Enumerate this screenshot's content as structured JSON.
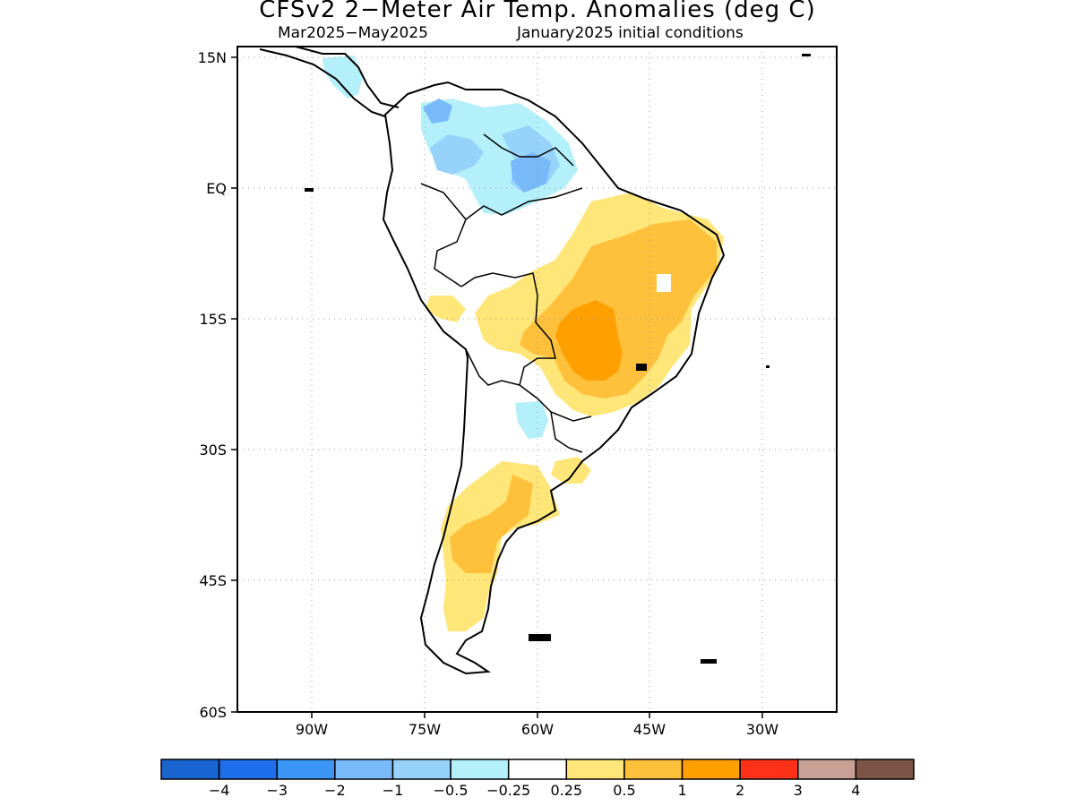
{
  "title": "CFSv2 2−Meter Air Temp. Anomalies (deg C)",
  "subtitle_left": "Mar2025−May2025",
  "subtitle_right": "January2025 initial conditions",
  "lat_labels": [
    "15N",
    "EQ",
    "15S",
    "30S",
    "45S",
    "60S"
  ],
  "lon_labels": [
    "90W",
    "75W",
    "60W",
    "45W",
    "30W"
  ],
  "colorbar": {
    "colors": [
      "#1a64d2",
      "#1e6eeb",
      "#3c96f5",
      "#78b9fa",
      "#96d2fa",
      "#b4f0fa",
      "#ffffff",
      "#ffe678",
      "#ffc03c",
      "#ffa000",
      "#ff3219",
      "#c8a096",
      "#7d5546"
    ],
    "labels": [
      "−4",
      "−3",
      "−2",
      "−1",
      "−0.5",
      "−0.25",
      "0.25",
      "0.5",
      "1",
      "2",
      "3",
      "4"
    ]
  },
  "map": {
    "extent": {
      "lon_min": -100,
      "lon_max": -20,
      "lat_min": -60,
      "lat_max": 16
    },
    "grid": "dotted",
    "anomaly_regions": [
      {
        "name": "brazil-warm-0.5",
        "level": "0.5"
      },
      {
        "name": "brazil-warm-1",
        "level": "1"
      },
      {
        "name": "brazil-warm-2",
        "level": "2"
      },
      {
        "name": "patagonia-warm-0.5",
        "level": "0.5"
      },
      {
        "name": "patagonia-warm-1",
        "level": "1"
      },
      {
        "name": "north-cool-0.25",
        "level": "-0.25"
      },
      {
        "name": "north-cool-0.5",
        "level": "-0.5"
      },
      {
        "name": "northeast-cool-1",
        "level": "-1"
      }
    ]
  }
}
